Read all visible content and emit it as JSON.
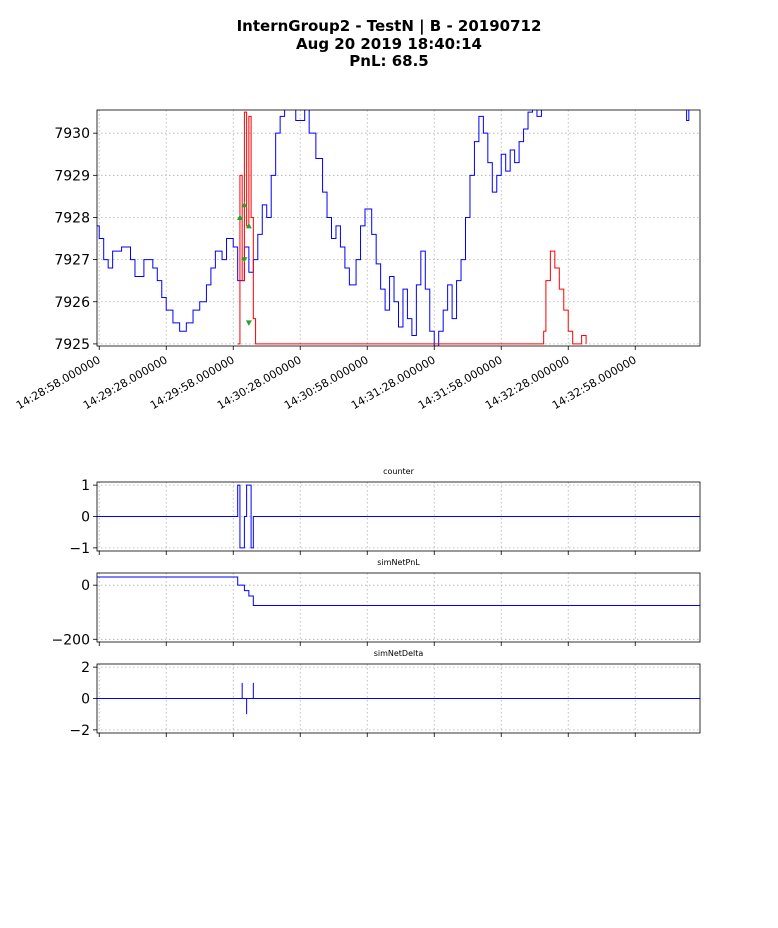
{
  "figure": {
    "title_lines": [
      "InternGroup2 - TestN | B - 20190712",
      "Aug 20 2019 18:40:14",
      "PnL: 68.5"
    ]
  },
  "colors": {
    "price_blue": "#0000ff",
    "price_red": "#ff0000",
    "marker_green": "#2ca02c",
    "grid": "#b0b0b0",
    "axes": "#000000"
  },
  "chart_data": [
    {
      "name": "price",
      "type": "line",
      "title": "",
      "xlabel": "",
      "ylabel": "",
      "x_axis": "time",
      "xlim": [
        "14:28:57",
        "14:33:27"
      ],
      "ylim": [
        7924.95,
        7930.55
      ],
      "x_tick_labels": [
        "14:28:58.000000",
        "14:29:28.000000",
        "14:29:58.000000",
        "14:30:28.000000",
        "14:30:58.000000",
        "14:31:28.000000",
        "14:31:58.000000",
        "14:32:28.000000",
        "14:32:58.000000"
      ],
      "x_ticks_sec": [
        "14:28:58",
        "14:29:28",
        "14:29:58",
        "14:30:28",
        "14:30:58",
        "14:31:28",
        "14:31:58",
        "14:32:28",
        "14:32:58"
      ],
      "y_ticks": [
        7925,
        7926,
        7927,
        7928,
        7929,
        7930
      ],
      "grid": true,
      "series": [
        {
          "color": "#0000ff",
          "step": true,
          "points": [
            [
              "14:28:57",
              7927.8
            ],
            [
              "14:28:58",
              7927.5
            ],
            [
              "14:29:00",
              7927.0
            ],
            [
              "14:29:02",
              7926.8
            ],
            [
              "14:29:04",
              7927.2
            ],
            [
              "14:29:08",
              7927.3
            ],
            [
              "14:29:12",
              7927.0
            ],
            [
              "14:29:14",
              7926.6
            ],
            [
              "14:29:18",
              7927.0
            ],
            [
              "14:29:22",
              7926.8
            ],
            [
              "14:29:24",
              7926.5
            ],
            [
              "14:29:26",
              7926.1
            ],
            [
              "14:29:28",
              7925.8
            ],
            [
              "14:29:31",
              7925.5
            ],
            [
              "14:29:34",
              7925.3
            ],
            [
              "14:29:37",
              7925.5
            ],
            [
              "14:29:40",
              7925.8
            ],
            [
              "14:29:43",
              7926.0
            ],
            [
              "14:29:46",
              7926.4
            ],
            [
              "14:29:48",
              7926.8
            ],
            [
              "14:29:50",
              7927.2
            ],
            [
              "14:29:53",
              7927.0
            ],
            [
              "14:29:55",
              7927.5
            ],
            [
              "14:29:58",
              7927.3
            ],
            [
              "14:30:00",
              7926.5
            ],
            [
              "14:30:03",
              7927.3
            ],
            [
              "14:30:05",
              7926.7
            ],
            [
              "14:30:07",
              7927.0
            ],
            [
              "14:30:09",
              7927.6
            ],
            [
              "14:30:11",
              7928.3
            ],
            [
              "14:30:13",
              7928.0
            ],
            [
              "14:30:15",
              7929.0
            ],
            [
              "14:30:17",
              7930.0
            ],
            [
              "14:30:19",
              7930.4
            ],
            [
              "14:30:21",
              7930.6
            ],
            [
              "14:30:23",
              7930.6
            ],
            [
              "14:30:26",
              7930.3
            ],
            [
              "14:30:30",
              7930.6
            ],
            [
              "14:30:32",
              7930.0
            ],
            [
              "14:30:35",
              7929.4
            ],
            [
              "14:30:38",
              7928.6
            ],
            [
              "14:30:40",
              7928.0
            ],
            [
              "14:30:42",
              7927.5
            ],
            [
              "14:30:44",
              7927.8
            ],
            [
              "14:30:46",
              7927.3
            ],
            [
              "14:30:48",
              7926.8
            ],
            [
              "14:30:50",
              7926.4
            ],
            [
              "14:30:53",
              7927.0
            ],
            [
              "14:30:55",
              7927.8
            ],
            [
              "14:30:57",
              7928.2
            ],
            [
              "14:31:00",
              7927.6
            ],
            [
              "14:31:02",
              7926.9
            ],
            [
              "14:31:04",
              7926.3
            ],
            [
              "14:31:06",
              7925.8
            ],
            [
              "14:31:08",
              7926.6
            ],
            [
              "14:31:10",
              7926.0
            ],
            [
              "14:31:12",
              7925.4
            ],
            [
              "14:31:14",
              7926.3
            ],
            [
              "14:31:16",
              7925.6
            ],
            [
              "14:31:18",
              7925.2
            ],
            [
              "14:31:20",
              7926.4
            ],
            [
              "14:31:22",
              7927.2
            ],
            [
              "14:31:24",
              7926.3
            ],
            [
              "14:31:26",
              7925.3
            ],
            [
              "14:31:28",
              7924.95
            ],
            [
              "14:31:30",
              7925.3
            ],
            [
              "14:31:32",
              7925.8
            ],
            [
              "14:31:34",
              7926.4
            ],
            [
              "14:31:36",
              7925.6
            ],
            [
              "14:31:38",
              7926.5
            ],
            [
              "14:31:40",
              7927.0
            ],
            [
              "14:31:42",
              7928.0
            ],
            [
              "14:31:44",
              7929.0
            ],
            [
              "14:31:46",
              7929.8
            ],
            [
              "14:31:48",
              7930.4
            ],
            [
              "14:31:50",
              7930.0
            ],
            [
              "14:31:52",
              7929.3
            ],
            [
              "14:31:54",
              7928.6
            ],
            [
              "14:31:56",
              7929.0
            ],
            [
              "14:31:58",
              7929.5
            ],
            [
              "14:32:00",
              7929.1
            ],
            [
              "14:32:02",
              7929.6
            ],
            [
              "14:32:04",
              7929.3
            ],
            [
              "14:32:06",
              7929.8
            ],
            [
              "14:32:08",
              7930.1
            ],
            [
              "14:32:10",
              7930.5
            ],
            [
              "14:32:12",
              7930.6
            ],
            [
              "14:32:14",
              7930.4
            ],
            [
              "14:32:16",
              7930.6
            ],
            [
              "14:32:18",
              7930.6
            ],
            [
              "14:33:20",
              7930.6
            ],
            [
              "14:33:21",
              7930.3
            ],
            [
              "14:33:22",
              7930.6
            ],
            [
              "14:33:27",
              7930.6
            ]
          ]
        },
        {
          "color": "#ff0000",
          "step": true,
          "points": [
            [
              "14:30:00",
              7925.0
            ],
            [
              "14:30:01",
              7929.0
            ],
            [
              "14:30:02",
              7926.5
            ],
            [
              "14:30:03",
              7930.5
            ],
            [
              "14:30:04",
              7927.8
            ],
            [
              "14:30:05",
              7930.4
            ],
            [
              "14:30:06",
              7928.0
            ],
            [
              "14:30:07",
              7925.6
            ],
            [
              "14:30:08",
              7925.0
            ],
            [
              "14:30:09",
              7925.0
            ],
            [
              "14:32:17",
              7925.3
            ],
            [
              "14:32:18",
              7926.5
            ],
            [
              "14:32:20",
              7927.2
            ],
            [
              "14:32:22",
              7926.8
            ],
            [
              "14:32:24",
              7926.3
            ],
            [
              "14:32:26",
              7925.8
            ],
            [
              "14:32:28",
              7925.3
            ],
            [
              "14:32:30",
              7925.0
            ],
            [
              "14:32:34",
              7925.2
            ],
            [
              "14:32:36",
              7925.0
            ]
          ]
        }
      ],
      "markers": [
        {
          "time": "14:30:01",
          "value": 7928.0,
          "direction": "up",
          "color": "#2ca02c"
        },
        {
          "time": "14:30:03",
          "value": 7928.3,
          "direction": "up",
          "color": "#2ca02c"
        },
        {
          "time": "14:30:03",
          "value": 7927.0,
          "direction": "down",
          "color": "#2ca02c"
        },
        {
          "time": "14:30:05",
          "value": 7927.8,
          "direction": "up",
          "color": "#2ca02c"
        },
        {
          "time": "14:30:05",
          "value": 7925.5,
          "direction": "down",
          "color": "#2ca02c"
        }
      ]
    },
    {
      "name": "counter",
      "type": "line",
      "title": "counter",
      "xlabel": "",
      "ylabel": "",
      "ylim": [
        -1.1,
        1.1
      ],
      "y_ticks": [
        1,
        0,
        -1
      ],
      "y_tick_labels": [
        "1",
        "0",
        "−1"
      ],
      "grid": true,
      "series": [
        {
          "color": "#0000ff",
          "step": true,
          "points": [
            [
              "14:28:57",
              0
            ],
            [
              "14:30:00",
              0
            ],
            [
              "14:30:00",
              1
            ],
            [
              "14:30:01",
              1
            ],
            [
              "14:30:01",
              -1
            ],
            [
              "14:30:03",
              -1
            ],
            [
              "14:30:03",
              0
            ],
            [
              "14:30:04",
              0
            ],
            [
              "14:30:04",
              1
            ],
            [
              "14:30:06",
              1
            ],
            [
              "14:30:06",
              -1
            ],
            [
              "14:30:07",
              -1
            ],
            [
              "14:30:07",
              0
            ],
            [
              "14:33:27",
              0
            ]
          ]
        }
      ]
    },
    {
      "name": "simNetPnL",
      "type": "line",
      "title": "simNetPnL",
      "xlabel": "",
      "ylabel": "",
      "ylim": [
        -210,
        45
      ],
      "y_ticks": [
        0,
        -200
      ],
      "y_tick_labels": [
        "0",
        "−200"
      ],
      "grid": true,
      "series": [
        {
          "color": "#0000ff",
          "step": true,
          "points": [
            [
              "14:28:57",
              30
            ],
            [
              "14:30:00",
              30
            ],
            [
              "14:30:00",
              0
            ],
            [
              "14:30:03",
              0
            ],
            [
              "14:30:03",
              -20
            ],
            [
              "14:30:05",
              -20
            ],
            [
              "14:30:05",
              -40
            ],
            [
              "14:30:07",
              -40
            ],
            [
              "14:30:07",
              -75
            ],
            [
              "14:33:27",
              -75
            ]
          ]
        }
      ]
    },
    {
      "name": "simNetDelta",
      "type": "line",
      "title": "simNetDelta",
      "xlabel": "",
      "ylabel": "",
      "ylim": [
        -2.2,
        2.2
      ],
      "y_ticks": [
        2,
        0,
        -2
      ],
      "y_tick_labels": [
        "2",
        "0",
        "−2"
      ],
      "grid": true,
      "series": [
        {
          "color": "#0000ff",
          "step": true,
          "points": [
            [
              "14:28:57",
              0
            ],
            [
              "14:30:02",
              0
            ],
            [
              "14:30:02",
              1
            ],
            [
              "14:30:02",
              0
            ],
            [
              "14:30:04",
              0
            ],
            [
              "14:30:04",
              -1
            ],
            [
              "14:30:04",
              0
            ],
            [
              "14:30:07",
              0
            ],
            [
              "14:30:07",
              1
            ],
            [
              "14:30:07",
              0
            ],
            [
              "14:33:27",
              0
            ]
          ]
        }
      ]
    }
  ]
}
